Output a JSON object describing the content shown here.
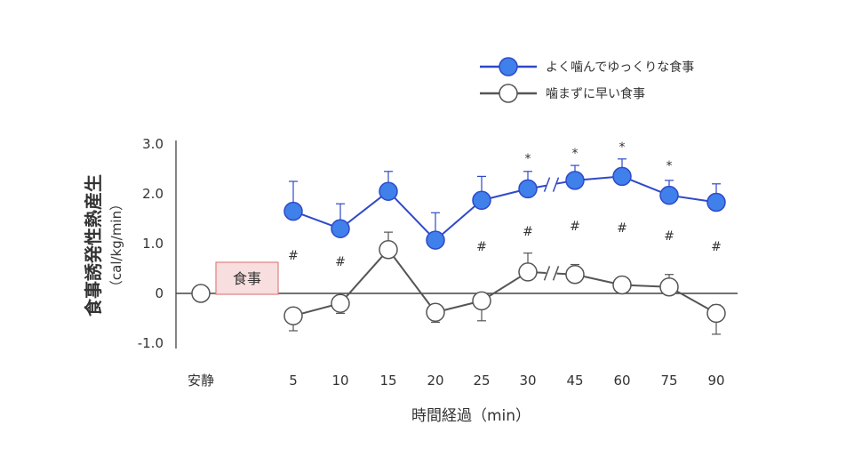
{
  "chart_data": {
    "type": "line",
    "ylabel": "食事誘発性熱産生",
    "ylabel_unit": "（cal/kg/min）",
    "xlabel": "時間経過（min）",
    "categories": [
      "安静",
      "5",
      "10",
      "15",
      "20",
      "25",
      "30",
      "45",
      "60",
      "75",
      "90"
    ],
    "ylim": [
      -1.0,
      3.0
    ],
    "yticks": [
      "3.0",
      "2.0",
      "1.0",
      "0",
      "-1.0"
    ],
    "legend_position": "top-right",
    "meal_label": "食事",
    "series": [
      {
        "name": "よく噛んでゆっくりな食事",
        "color": "#2f49c9",
        "fill": "#3f80ea",
        "marker_fill": "filled",
        "values": [
          0,
          1.65,
          1.3,
          2.05,
          1.07,
          1.87,
          2.1,
          2.27,
          2.35,
          1.97,
          1.83
        ],
        "errors": [
          0,
          0.6,
          0.5,
          0.4,
          0.55,
          0.48,
          0.35,
          0.3,
          0.35,
          0.3,
          0.37
        ]
      },
      {
        "name": "噛まずに早い食事",
        "color": "#555555",
        "fill": "#ffffff",
        "marker_fill": "open",
        "values": [
          0,
          -0.45,
          -0.2,
          0.88,
          -0.38,
          -0.15,
          0.43,
          0.38,
          0.17,
          0.13,
          -0.4
        ],
        "errors": [
          0,
          0.3,
          0.2,
          0.35,
          0.2,
          0.4,
          0.38,
          0.2,
          0.1,
          0.25,
          0.42
        ]
      }
    ],
    "annotations": {
      "hash_symbol": "#",
      "hash_categories": [
        "5",
        "10",
        "25",
        "30",
        "45",
        "60",
        "75",
        "90"
      ],
      "star_symbol": "*",
      "star_categories": [
        "30",
        "45",
        "60",
        "75"
      ]
    }
  }
}
